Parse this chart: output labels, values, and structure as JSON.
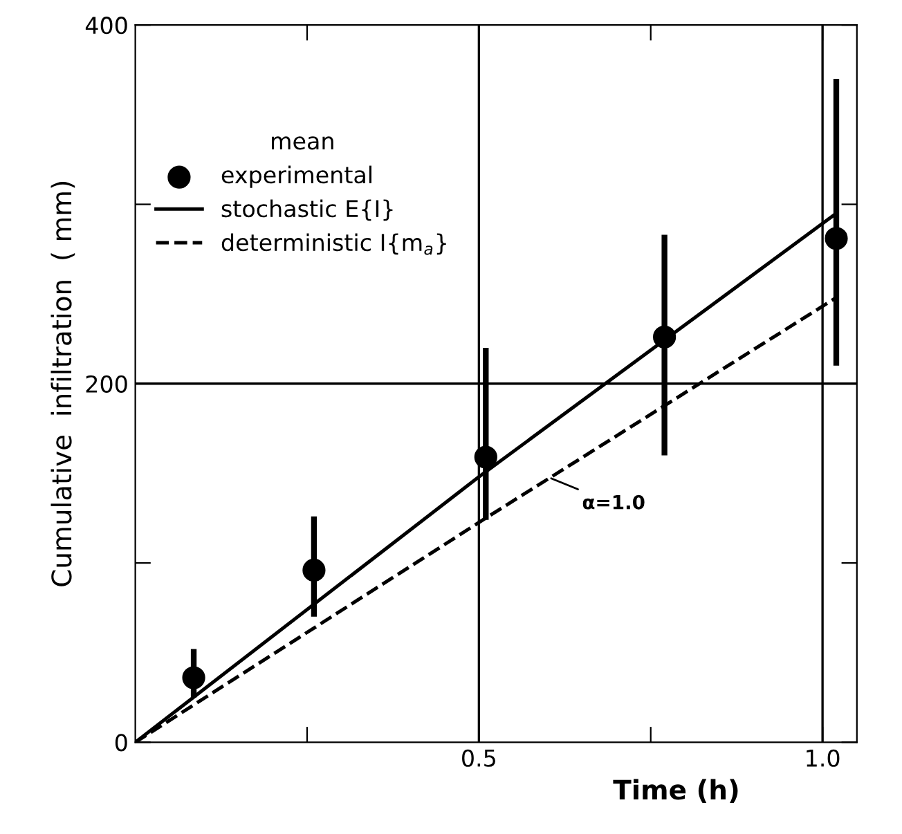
{
  "chart_data": {
    "type": "scatter",
    "xlabel": "Time (h)",
    "ylabel": "Cumulative  infiltration  ( mm)",
    "legend_title": "mean",
    "legend": "top left",
    "xlim": [
      0,
      1.05
    ],
    "ylim": [
      0,
      400
    ],
    "xticks": [
      {
        "value": 0.25,
        "label": null
      },
      0.5,
      {
        "value": 0.75,
        "label": null
      },
      {
        "value": 1.0,
        "label": "1.0"
      }
    ],
    "yticks": [
      0,
      {
        "value": 100,
        "label": null
      },
      200,
      {
        "value": 300,
        "label": null
      },
      400
    ],
    "ref_lines": [
      {
        "axis": "x",
        "value": 0.5,
        "color": "#000000"
      },
      {
        "axis": "x",
        "value": 1.0,
        "color": "#000000"
      },
      {
        "axis": "y",
        "value": 200,
        "color": "#000000"
      }
    ],
    "series": [
      {
        "name": "experimental",
        "marker": "circle",
        "color": "#000000",
        "x": [
          0.085,
          0.26,
          0.51,
          0.77,
          1.02
        ],
        "values": [
          36,
          96,
          159,
          226,
          281
        ],
        "errors": [
          [
            25,
            52
          ],
          [
            70,
            126
          ],
          [
            124,
            220
          ],
          [
            160,
            283
          ],
          [
            210,
            370
          ]
        ]
      },
      {
        "name": "stochastic E{I}",
        "type": "line",
        "line_style": "solid",
        "color": "#000000",
        "x": [
          0,
          0.5,
          1.02
        ],
        "values": [
          0,
          148,
          295
        ]
      },
      {
        "name": "deterministic I{m$_{a}$}",
        "type": "line",
        "line_style": "dashed",
        "color": "#000000",
        "x": [
          0,
          0.51,
          1.02
        ],
        "values": [
          0,
          125,
          248
        ]
      }
    ],
    "annotations": [
      {
        "text": "α=1.0",
        "x": 0.6,
        "y": 148
      }
    ]
  }
}
